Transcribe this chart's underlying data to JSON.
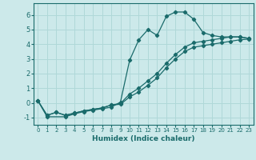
{
  "xlabel": "Humidex (Indice chaleur)",
  "xlim": [
    -0.5,
    23.5
  ],
  "ylim": [
    -1.5,
    6.8
  ],
  "xticks": [
    0,
    1,
    2,
    3,
    4,
    5,
    6,
    7,
    8,
    9,
    10,
    11,
    12,
    13,
    14,
    15,
    16,
    17,
    18,
    19,
    20,
    21,
    22,
    23
  ],
  "yticks": [
    -1,
    0,
    1,
    2,
    3,
    4,
    5,
    6
  ],
  "bg_color": "#cce9ea",
  "grid_color": "#b0d8d8",
  "line_color": "#1a6b6b",
  "lines": [
    {
      "x": [
        0,
        1,
        3,
        4,
        5,
        6,
        7,
        8,
        9,
        10,
        11,
        12,
        13,
        14,
        15,
        16,
        17,
        18,
        19,
        20,
        21,
        22,
        23
      ],
      "y": [
        0.15,
        -0.95,
        -0.95,
        -0.75,
        -0.6,
        -0.5,
        -0.4,
        -0.3,
        0.05,
        2.9,
        4.3,
        5.0,
        4.6,
        5.9,
        6.2,
        6.2,
        5.7,
        4.8,
        4.6,
        4.5,
        4.5,
        4.5,
        4.4
      ]
    },
    {
      "x": [
        0,
        1,
        2,
        3,
        4,
        5,
        6,
        7,
        8,
        9,
        10,
        11,
        12,
        13,
        14,
        15,
        16,
        17,
        18,
        19,
        20,
        21,
        22,
        23
      ],
      "y": [
        0.15,
        -0.85,
        -0.65,
        -0.85,
        -0.7,
        -0.55,
        -0.45,
        -0.35,
        -0.15,
        -0.05,
        0.6,
        1.0,
        1.5,
        2.0,
        2.7,
        3.3,
        3.8,
        4.1,
        4.2,
        4.3,
        4.4,
        4.5,
        4.5,
        4.4
      ]
    },
    {
      "x": [
        0,
        1,
        2,
        3,
        4,
        5,
        6,
        7,
        8,
        9,
        10,
        11,
        12,
        13,
        14,
        15,
        16,
        17,
        18,
        19,
        20,
        21,
        22,
        23
      ],
      "y": [
        0.15,
        -0.85,
        -0.65,
        -0.85,
        -0.7,
        -0.55,
        -0.45,
        -0.35,
        -0.15,
        -0.1,
        0.4,
        0.75,
        1.2,
        1.7,
        2.4,
        3.0,
        3.5,
        3.8,
        3.9,
        4.0,
        4.1,
        4.2,
        4.3,
        4.35
      ]
    }
  ]
}
